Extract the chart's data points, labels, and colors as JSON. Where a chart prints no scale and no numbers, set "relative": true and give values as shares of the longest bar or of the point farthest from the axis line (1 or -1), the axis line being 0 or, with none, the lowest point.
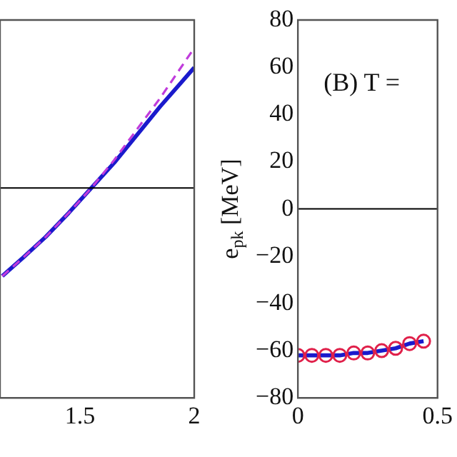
{
  "chart_data": [
    {
      "type": "line",
      "relative": true,
      "tick_labels": "x",
      "xlim": [
        1.15,
        2
      ],
      "xticks": [
        1.5,
        2
      ],
      "grid": false,
      "legend": false,
      "ref_lines": [
        {
          "axis": "y",
          "value": 0,
          "color": "#000000"
        }
      ],
      "x": [
        1.16,
        1.25,
        1.35,
        1.45,
        1.55,
        1.65,
        1.75,
        1.85,
        2.0
      ],
      "series": [
        {
          "color": "#1a1acc",
          "line_style": "solid",
          "marker": "none",
          "values": [
            -0.63,
            -0.5,
            -0.35,
            -0.18,
            0,
            0.18,
            0.38,
            0.58,
            0.86
          ]
        },
        {
          "color": "#c03cdc",
          "line_style": "dashed",
          "marker": "none",
          "values": [
            -0.63,
            -0.5,
            -0.35,
            -0.18,
            0,
            0.2,
            0.42,
            0.64,
            1.0
          ]
        }
      ]
    },
    {
      "type": "line",
      "ylabel": "e$_{pk}$ [MeV]",
      "annotations": [
        "(B) T ="
      ],
      "xlim": [
        0,
        0.5
      ],
      "xticks": [
        0,
        0.5
      ],
      "ylim": [
        -80,
        80
      ],
      "yticks": [
        -80,
        -60,
        -40,
        -20,
        0,
        20,
        40,
        60,
        80
      ],
      "grid": false,
      "legend": false,
      "ref_lines": [
        {
          "axis": "y",
          "value": 0,
          "color": "#000000"
        }
      ],
      "x": [
        0,
        0.05,
        0.1,
        0.15,
        0.2,
        0.25,
        0.3,
        0.35,
        0.4,
        0.45
      ],
      "series": [
        {
          "color": "#1a1acc",
          "line_style": "solid",
          "marker": "none",
          "values": [
            -62,
            -62,
            -62,
            -62,
            -61,
            -61,
            -60,
            -59,
            -57,
            -56
          ]
        },
        {
          "type": "scatter",
          "color": "#e0204a",
          "marker": "circle",
          "values": [
            -62,
            -62,
            -62,
            -62,
            -61,
            -61,
            -60,
            -59,
            -57,
            -56
          ]
        }
      ]
    }
  ]
}
